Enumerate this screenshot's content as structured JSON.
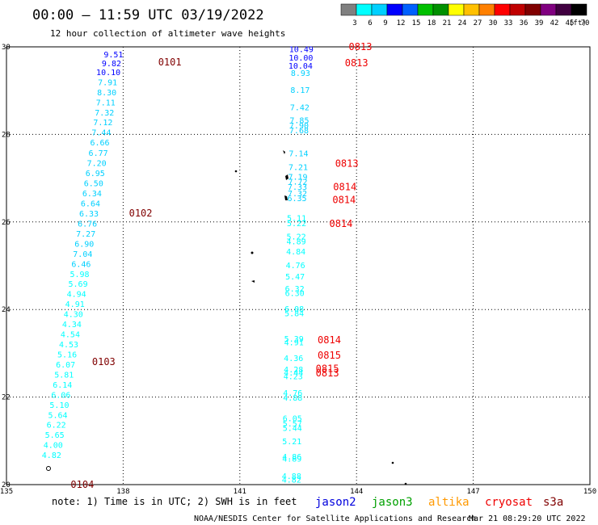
{
  "header": {
    "title": "00:00 – 11:59 UTC 03/19/2022",
    "subtitle": "12 hour collection of altimeter wave heights"
  },
  "colorbar": {
    "colors": [
      "#808080",
      "#00ffff",
      "#00d0ff",
      "#0000ff",
      "#0060ff",
      "#00c000",
      "#009000",
      "#ffff00",
      "#ffc000",
      "#ff8000",
      "#ff0000",
      "#c00000",
      "#800000",
      "#800080",
      "#400040",
      "#000000"
    ],
    "ticks": [
      "3",
      "6",
      "9",
      "12",
      "15",
      "18",
      "21",
      "24",
      "27",
      "30",
      "33",
      "36",
      "39",
      "42",
      "45",
      "70"
    ],
    "unit": "(ft)"
  },
  "footer": {
    "note": "note: 1) Time is in UTC; 2) SWH is in feet",
    "satellites": [
      {
        "name": "jason2",
        "color": "#0000dd"
      },
      {
        "name": "jason3",
        "color": "#00a000"
      },
      {
        "name": "altika",
        "color": "#ff9900"
      },
      {
        "name": "cryosat",
        "color": "#ee0000"
      },
      {
        "name": "s3a",
        "color": "#800000"
      }
    ],
    "credit": "NOAA/NESDIS Center for Satellite Applications and Research",
    "timestamp": "Mar 21 08:29:20 UTC 2022"
  },
  "chart_data": {
    "type": "scatter",
    "xlim": [
      135,
      150
    ],
    "ylim": [
      20,
      30
    ],
    "xticks": [
      135,
      138,
      141,
      144,
      147,
      150
    ],
    "yticks": [
      20,
      22,
      24,
      26,
      28,
      30
    ],
    "grid": true,
    "points": [
      {
        "lon": 137.75,
        "lat": 29.83,
        "v": "9.51",
        "c": "#0000ff"
      },
      {
        "lon": 137.7,
        "lat": 29.63,
        "v": "9.82",
        "c": "#0000ff"
      },
      {
        "lon": 137.62,
        "lat": 29.43,
        "v": "10.10",
        "c": "#0000ff"
      },
      {
        "lon": 137.6,
        "lat": 29.2,
        "v": "7.91",
        "c": "#00d0ff"
      },
      {
        "lon": 137.58,
        "lat": 28.97,
        "v": "8.30",
        "c": "#00d0ff"
      },
      {
        "lon": 137.55,
        "lat": 28.74,
        "v": "7.11",
        "c": "#00d0ff"
      },
      {
        "lon": 137.52,
        "lat": 28.51,
        "v": "7.32",
        "c": "#00d0ff"
      },
      {
        "lon": 137.48,
        "lat": 28.28,
        "v": "7.12",
        "c": "#00d0ff"
      },
      {
        "lon": 137.44,
        "lat": 28.05,
        "v": "7.44",
        "c": "#00d0ff"
      },
      {
        "lon": 137.4,
        "lat": 27.82,
        "v": "6.66",
        "c": "#00d0ff"
      },
      {
        "lon": 137.36,
        "lat": 27.58,
        "v": "6.77",
        "c": "#00d0ff"
      },
      {
        "lon": 137.32,
        "lat": 27.35,
        "v": "7.20",
        "c": "#00d0ff"
      },
      {
        "lon": 137.28,
        "lat": 27.12,
        "v": "6.95",
        "c": "#00d0ff"
      },
      {
        "lon": 137.24,
        "lat": 26.89,
        "v": "6.50",
        "c": "#00d0ff"
      },
      {
        "lon": 137.2,
        "lat": 26.66,
        "v": "6.34",
        "c": "#00d0ff"
      },
      {
        "lon": 137.16,
        "lat": 26.43,
        "v": "6.64",
        "c": "#00d0ff"
      },
      {
        "lon": 137.12,
        "lat": 26.2,
        "v": "6.33",
        "c": "#00d0ff"
      },
      {
        "lon": 137.08,
        "lat": 25.97,
        "v": "6.76",
        "c": "#00d0ff"
      },
      {
        "lon": 137.04,
        "lat": 25.74,
        "v": "7.27",
        "c": "#00d0ff"
      },
      {
        "lon": 137.0,
        "lat": 25.51,
        "v": "6.90",
        "c": "#00d0ff"
      },
      {
        "lon": 136.96,
        "lat": 25.28,
        "v": "7.04",
        "c": "#00d0ff"
      },
      {
        "lon": 136.92,
        "lat": 25.05,
        "v": "6.46",
        "c": "#00d0ff"
      },
      {
        "lon": 136.88,
        "lat": 24.82,
        "v": "5.98",
        "c": "#00ffff"
      },
      {
        "lon": 136.84,
        "lat": 24.59,
        "v": "5.69",
        "c": "#00ffff"
      },
      {
        "lon": 136.8,
        "lat": 24.36,
        "v": "4.94",
        "c": "#00ffff"
      },
      {
        "lon": 136.76,
        "lat": 24.13,
        "v": "4.91",
        "c": "#00ffff"
      },
      {
        "lon": 136.72,
        "lat": 23.9,
        "v": "4.30",
        "c": "#00ffff"
      },
      {
        "lon": 136.68,
        "lat": 23.67,
        "v": "4.34",
        "c": "#00ffff"
      },
      {
        "lon": 136.64,
        "lat": 23.44,
        "v": "4.54",
        "c": "#00ffff"
      },
      {
        "lon": 136.6,
        "lat": 23.21,
        "v": "4.53",
        "c": "#00ffff"
      },
      {
        "lon": 136.56,
        "lat": 22.98,
        "v": "5.16",
        "c": "#00ffff"
      },
      {
        "lon": 136.52,
        "lat": 22.75,
        "v": "6.07",
        "c": "#00ffff"
      },
      {
        "lon": 136.48,
        "lat": 22.52,
        "v": "5.81",
        "c": "#00ffff"
      },
      {
        "lon": 136.44,
        "lat": 22.29,
        "v": "6.14",
        "c": "#00ffff"
      },
      {
        "lon": 136.4,
        "lat": 22.06,
        "v": "6.06",
        "c": "#00ffff"
      },
      {
        "lon": 136.36,
        "lat": 21.83,
        "v": "5.10",
        "c": "#00ffff"
      },
      {
        "lon": 136.32,
        "lat": 21.6,
        "v": "5.64",
        "c": "#00ffff"
      },
      {
        "lon": 136.28,
        "lat": 21.37,
        "v": "6.22",
        "c": "#00ffff"
      },
      {
        "lon": 136.24,
        "lat": 21.14,
        "v": "5.65",
        "c": "#00ffff"
      },
      {
        "lon": 136.2,
        "lat": 20.91,
        "v": "4.00",
        "c": "#00ffff"
      },
      {
        "lon": 136.16,
        "lat": 20.68,
        "v": "4.82",
        "c": "#00ffff"
      },
      {
        "lon": 142.58,
        "lat": 29.95,
        "v": "10.49",
        "c": "#0000ff"
      },
      {
        "lon": 142.57,
        "lat": 29.76,
        "v": "10.00",
        "c": "#0000ff"
      },
      {
        "lon": 142.56,
        "lat": 29.58,
        "v": "10.04",
        "c": "#0000ff"
      },
      {
        "lon": 142.56,
        "lat": 29.41,
        "v": "8.93",
        "c": "#00d0ff"
      },
      {
        "lon": 142.55,
        "lat": 29.02,
        "v": "8.17",
        "c": "#00d0ff"
      },
      {
        "lon": 142.54,
        "lat": 28.63,
        "v": "7.42",
        "c": "#00d0ff"
      },
      {
        "lon": 142.53,
        "lat": 28.33,
        "v": "7.85",
        "c": "#00d0ff"
      },
      {
        "lon": 142.52,
        "lat": 28.21,
        "v": "7.90",
        "c": "#00d0ff"
      },
      {
        "lon": 142.52,
        "lat": 28.1,
        "v": "7.68",
        "c": "#00d0ff"
      },
      {
        "lon": 142.51,
        "lat": 27.57,
        "v": "7.14",
        "c": "#00d0ff"
      },
      {
        "lon": 142.5,
        "lat": 27.26,
        "v": "7.21",
        "c": "#00d0ff"
      },
      {
        "lon": 142.49,
        "lat": 27.04,
        "v": "7.19",
        "c": "#00d0ff"
      },
      {
        "lon": 142.49,
        "lat": 26.93,
        "v": "7.72",
        "c": "#00d0ff"
      },
      {
        "lon": 142.48,
        "lat": 26.81,
        "v": "7.33",
        "c": "#00d0ff"
      },
      {
        "lon": 142.48,
        "lat": 26.66,
        "v": "7.32",
        "c": "#00d0ff"
      },
      {
        "lon": 142.47,
        "lat": 26.55,
        "v": "6.35",
        "c": "#00d0ff"
      },
      {
        "lon": 142.46,
        "lat": 26.1,
        "v": "5.11",
        "c": "#00ffff"
      },
      {
        "lon": 142.46,
        "lat": 25.98,
        "v": "5.22",
        "c": "#00ffff"
      },
      {
        "lon": 142.45,
        "lat": 25.67,
        "v": "5.22",
        "c": "#00ffff"
      },
      {
        "lon": 142.45,
        "lat": 25.56,
        "v": "4.89",
        "c": "#00ffff"
      },
      {
        "lon": 142.44,
        "lat": 25.33,
        "v": "4.84",
        "c": "#00ffff"
      },
      {
        "lon": 142.43,
        "lat": 25.02,
        "v": "4.76",
        "c": "#00ffff"
      },
      {
        "lon": 142.42,
        "lat": 24.76,
        "v": "5.47",
        "c": "#00ffff"
      },
      {
        "lon": 142.41,
        "lat": 24.48,
        "v": "6.32",
        "c": "#00ffff"
      },
      {
        "lon": 142.41,
        "lat": 24.38,
        "v": "6.30",
        "c": "#00ffff"
      },
      {
        "lon": 142.4,
        "lat": 24.02,
        "v": "6.08",
        "c": "#00ffff"
      },
      {
        "lon": 142.4,
        "lat": 23.92,
        "v": "5.84",
        "c": "#00ffff"
      },
      {
        "lon": 142.39,
        "lat": 23.34,
        "v": "5.39",
        "c": "#00ffff"
      },
      {
        "lon": 142.39,
        "lat": 23.26,
        "v": "4.91",
        "c": "#00ffff"
      },
      {
        "lon": 142.38,
        "lat": 22.9,
        "v": "4.36",
        "c": "#00ffff"
      },
      {
        "lon": 142.38,
        "lat": 22.64,
        "v": "4.28",
        "c": "#00ffff"
      },
      {
        "lon": 142.38,
        "lat": 22.56,
        "v": "4.44",
        "c": "#00ffff"
      },
      {
        "lon": 142.37,
        "lat": 22.48,
        "v": "4.23",
        "c": "#00ffff"
      },
      {
        "lon": 142.36,
        "lat": 22.1,
        "v": "4.76",
        "c": "#00ffff"
      },
      {
        "lon": 142.36,
        "lat": 21.99,
        "v": "4.88",
        "c": "#00ffff"
      },
      {
        "lon": 142.35,
        "lat": 21.52,
        "v": "6.05",
        "c": "#00ffff"
      },
      {
        "lon": 142.35,
        "lat": 21.4,
        "v": "5.57",
        "c": "#00ffff"
      },
      {
        "lon": 142.35,
        "lat": 21.3,
        "v": "5.44",
        "c": "#00ffff"
      },
      {
        "lon": 142.34,
        "lat": 21.0,
        "v": "5.21",
        "c": "#00ffff"
      },
      {
        "lon": 142.34,
        "lat": 20.65,
        "v": "4.86",
        "c": "#00ffff"
      },
      {
        "lon": 142.34,
        "lat": 20.6,
        "v": "4.89",
        "c": "#00ffff"
      },
      {
        "lon": 142.33,
        "lat": 20.2,
        "v": "4.88",
        "c": "#00ffff"
      },
      {
        "lon": 142.33,
        "lat": 20.12,
        "v": "4.82",
        "c": "#00ffff"
      }
    ],
    "pass_labels": [
      {
        "lon": 139.2,
        "lat": 29.65,
        "t": "0101",
        "c": "#800000"
      },
      {
        "lon": 138.45,
        "lat": 26.2,
        "t": "0102",
        "c": "#800000"
      },
      {
        "lon": 137.5,
        "lat": 22.8,
        "t": "0103",
        "c": "#800000"
      },
      {
        "lon": 136.95,
        "lat": 20.0,
        "t": "0104",
        "c": "#800000"
      },
      {
        "lon": 144.1,
        "lat": 30.0,
        "t": "0813",
        "c": "#ee0000"
      },
      {
        "lon": 144.0,
        "lat": 29.63,
        "t": "0813",
        "c": "#ee0000"
      },
      {
        "lon": 143.75,
        "lat": 27.33,
        "t": "0813",
        "c": "#ee0000"
      },
      {
        "lon": 143.7,
        "lat": 26.8,
        "t": "0814",
        "c": "#ee0000"
      },
      {
        "lon": 143.68,
        "lat": 26.5,
        "t": "0814",
        "c": "#ee0000"
      },
      {
        "lon": 143.6,
        "lat": 25.96,
        "t": "0814",
        "c": "#ee0000"
      },
      {
        "lon": 143.3,
        "lat": 23.3,
        "t": "0814",
        "c": "#ee0000"
      },
      {
        "lon": 143.3,
        "lat": 22.95,
        "t": "0815",
        "c": "#ee0000"
      },
      {
        "lon": 143.25,
        "lat": 22.65,
        "t": "0815",
        "c": "#ee0000"
      },
      {
        "lon": 143.25,
        "lat": 22.55,
        "t": "0813",
        "c": "#ee0000"
      }
    ]
  }
}
